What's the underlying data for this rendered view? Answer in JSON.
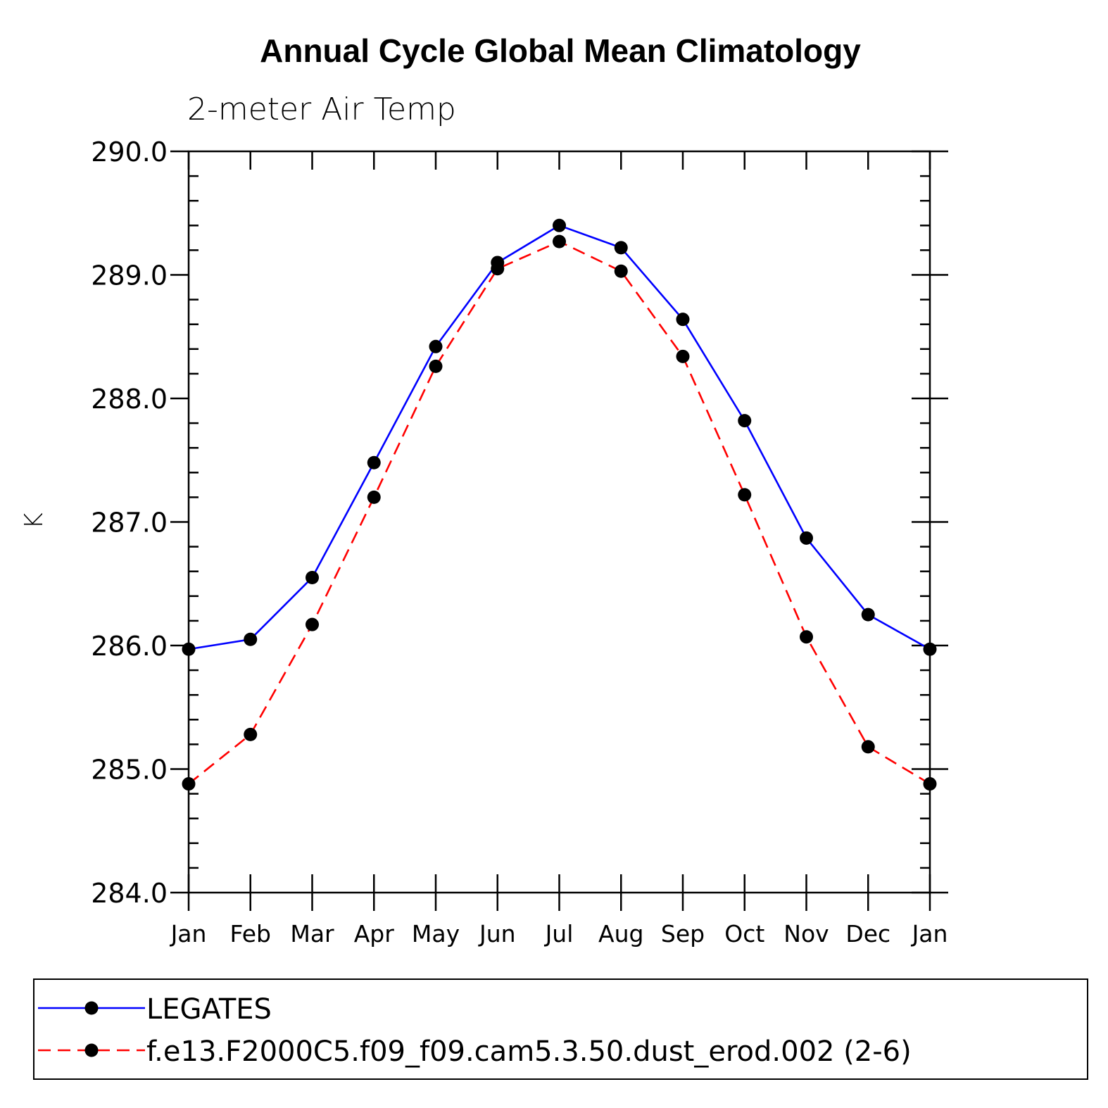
{
  "chart_data": {
    "type": "line",
    "title": "Annual Cycle Global Mean Climatology",
    "subtitle": "2-meter Air Temp",
    "xlabel": "",
    "ylabel": "K",
    "categories": [
      "Jan",
      "Feb",
      "Mar",
      "Apr",
      "May",
      "Jun",
      "Jul",
      "Aug",
      "Sep",
      "Oct",
      "Nov",
      "Dec",
      "Jan"
    ],
    "ylim": [
      284.0,
      290.0
    ],
    "yticks": [
      "284.0",
      "285.0",
      "286.0",
      "287.0",
      "288.0",
      "289.0",
      "290.0"
    ],
    "grid": false,
    "legend_position": "bottom",
    "series": [
      {
        "name": "LEGATES",
        "color": "#0000ff",
        "style": "solid",
        "marker": "filled-circle",
        "values": [
          285.97,
          286.05,
          286.55,
          287.48,
          288.42,
          289.1,
          289.4,
          289.22,
          288.64,
          287.82,
          286.87,
          286.25,
          285.97
        ]
      },
      {
        "name": "f.e13.F2000C5.f09_f09.cam5.3.50.dust_erod.002 (2-6)",
        "color": "#ff0000",
        "style": "dashed",
        "marker": "filled-circle",
        "values": [
          284.88,
          285.28,
          286.17,
          287.2,
          288.26,
          289.05,
          289.27,
          289.03,
          288.34,
          287.22,
          286.07,
          285.18,
          284.88
        ]
      }
    ]
  }
}
